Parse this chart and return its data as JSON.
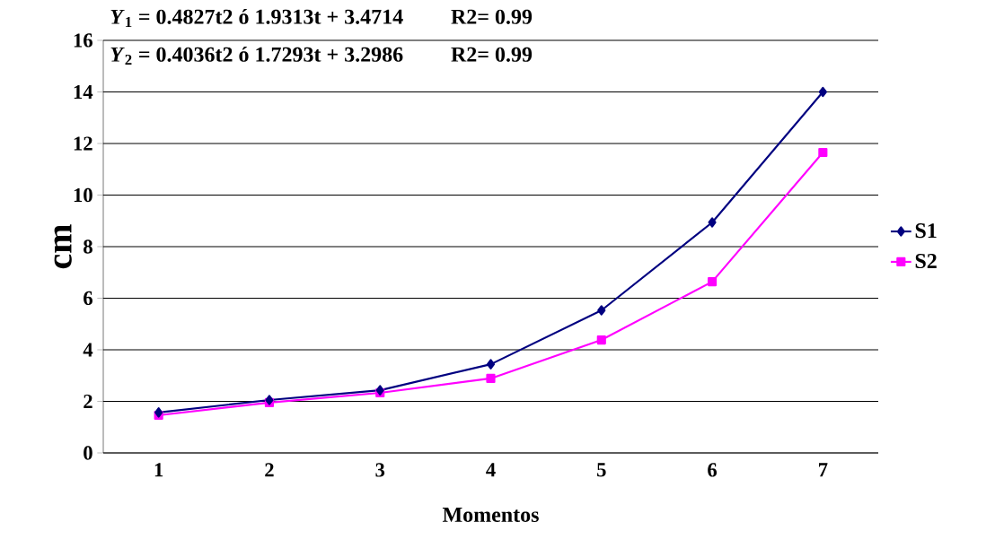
{
  "chart_data": {
    "type": "line",
    "categories": [
      "1",
      "2",
      "3",
      "4",
      "5",
      "6",
      "7"
    ],
    "series": [
      {
        "name": "S1",
        "color": "#000080",
        "marker": "diamond",
        "values": [
          1.57,
          2.05,
          2.43,
          3.44,
          5.53,
          8.94,
          14.0
        ]
      },
      {
        "name": "S2",
        "color": "#ff00ff",
        "marker": "square",
        "values": [
          1.46,
          1.95,
          2.33,
          2.89,
          4.38,
          6.64,
          11.65
        ]
      }
    ],
    "xlabel": "Momentos",
    "ylabel": "cm",
    "ylim": [
      0,
      16
    ],
    "yticks": [
      0,
      2,
      4,
      6,
      8,
      10,
      12,
      14,
      16
    ],
    "grid": "y",
    "legend": "right",
    "line_style": "solid",
    "annotations": [
      "*Y*$_{1}$ = 0.4827t2 ó 1.9313t + 3.4714     R2= 0.99",
      "*Y*$_{2}$ = 0.4036t2 ó 1.7293t + 3.2986     R2= 0.99"
    ]
  }
}
